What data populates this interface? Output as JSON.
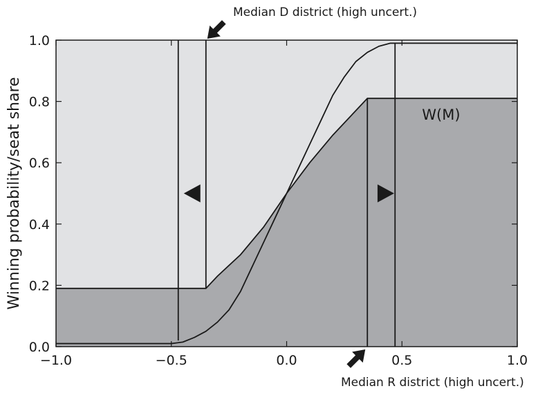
{
  "chart_data": {
    "type": "area",
    "title": "",
    "xlabel": "",
    "ylabel": "Winning probability/seat share",
    "xlim": [
      -1.0,
      1.0
    ],
    "ylim": [
      0.0,
      1.0
    ],
    "xticks": [
      "−1.0",
      "−0.5",
      "0.0",
      "0.5",
      "1.0"
    ],
    "xtick_values": [
      -1.0,
      -0.5,
      0.0,
      0.5,
      1.0
    ],
    "yticks": [
      "0.0",
      "0.2",
      "0.4",
      "0.6",
      "0.8",
      "1.0"
    ],
    "ytick_values": [
      0.0,
      0.2,
      0.4,
      0.6,
      0.8,
      1.0
    ],
    "grid": false,
    "colors": {
      "background_region": "#e1e2e4",
      "shaded_region": "#a9aaad",
      "line": "#1a1a1a"
    },
    "series": [
      {
        "style": "steep sigmoid curve",
        "x": [
          -1.0,
          -0.6,
          -0.5,
          -0.45,
          -0.4,
          -0.35,
          -0.3,
          -0.25,
          -0.2,
          -0.15,
          -0.1,
          -0.05,
          0.0,
          0.05,
          0.1,
          0.15,
          0.2,
          0.25,
          0.3,
          0.35,
          0.4,
          0.45,
          0.47,
          1.0
        ],
        "y": [
          0.01,
          0.01,
          0.01,
          0.015,
          0.03,
          0.05,
          0.08,
          0.12,
          0.18,
          0.26,
          0.34,
          0.42,
          0.5,
          0.58,
          0.66,
          0.74,
          0.82,
          0.88,
          0.93,
          0.96,
          0.98,
          0.99,
          0.99,
          0.99
        ]
      },
      {
        "name": "W(M)",
        "style": "seat share curve (boundary of shaded region)",
        "x": [
          -1.0,
          -0.35,
          -0.3,
          -0.2,
          -0.1,
          0.0,
          0.1,
          0.2,
          0.3,
          0.35,
          1.0
        ],
        "y": [
          0.19,
          0.19,
          0.23,
          0.3,
          0.39,
          0.5,
          0.6,
          0.69,
          0.77,
          0.81,
          0.81
        ]
      }
    ],
    "vertical_lines": [
      {
        "x": -0.47,
        "ymin": 0.02,
        "ymax": 1.0
      },
      {
        "x": -0.35,
        "ymin": 0.19,
        "ymax": 1.0
      },
      {
        "x": 0.35,
        "ymin": 0.0,
        "ymax": 0.81
      },
      {
        "x": 0.47,
        "ymin": 0.0,
        "ymax": 0.99
      }
    ],
    "direction_markers": [
      {
        "direction": "left",
        "x": -0.41,
        "y": 0.5
      },
      {
        "direction": "right",
        "x": 0.43,
        "y": 0.5
      }
    ],
    "annotations": [
      {
        "text": "Median D district (high uncert.)",
        "target": {
          "x": -0.35,
          "y": 1.0
        }
      },
      {
        "text": "Median R district (high uncert.)",
        "target": {
          "x": 0.35,
          "y": 0.0
        }
      },
      {
        "text": "W(M)",
        "x": 0.67,
        "y": 0.74
      }
    ]
  }
}
